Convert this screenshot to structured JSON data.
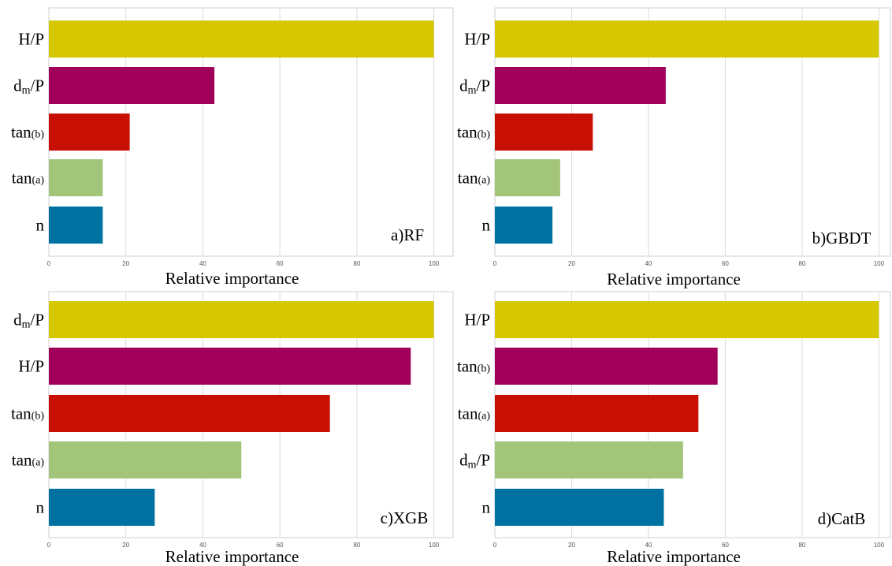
{
  "figure": {
    "colors": [
      "#d6c800",
      "#a1005a",
      "#c80f04",
      "#a2c57a",
      "#0072a2"
    ]
  },
  "chart_data": [
    {
      "type": "bar",
      "orientation": "horizontal",
      "panel_label": "a)RF",
      "xlabel": "Relative importance",
      "xlim": [
        0,
        105
      ],
      "xticks": [
        "0",
        "20",
        "40",
        "60",
        "80",
        "100"
      ],
      "grid": true,
      "categories": [
        {
          "main": "H/P",
          "sub": ""
        },
        {
          "main": "dm/P",
          "sub": ""
        },
        {
          "main": "tan",
          "sub": "(b)"
        },
        {
          "main": "tan",
          "sub": "(a)"
        },
        {
          "main": "n",
          "sub": ""
        }
      ],
      "values": [
        100,
        43,
        21,
        14,
        14
      ]
    },
    {
      "type": "bar",
      "orientation": "horizontal",
      "panel_label": "b)GBDT",
      "xlabel": "Relative importance",
      "xlim": [
        0,
        103
      ],
      "xticks": [
        "0",
        "20",
        "40",
        "60",
        "80",
        "100"
      ],
      "grid": true,
      "categories": [
        {
          "main": "H/P",
          "sub": ""
        },
        {
          "main": "dm/P",
          "sub": ""
        },
        {
          "main": "tan",
          "sub": "(b)"
        },
        {
          "main": "tan",
          "sub": "(a)"
        },
        {
          "main": "n",
          "sub": ""
        }
      ],
      "values": [
        100,
        44.5,
        25.5,
        17,
        15
      ]
    },
    {
      "type": "bar",
      "orientation": "horizontal",
      "panel_label": "c)XGB",
      "xlabel": "Relative importance",
      "xlim": [
        0,
        105
      ],
      "xticks": [
        "0",
        "20",
        "40",
        "60",
        "80",
        "100"
      ],
      "grid": true,
      "categories": [
        {
          "main": "dm/P",
          "sub": ""
        },
        {
          "main": "H/P",
          "sub": ""
        },
        {
          "main": "tan",
          "sub": "(b)"
        },
        {
          "main": "tan",
          "sub": "(a)"
        },
        {
          "main": "n",
          "sub": ""
        }
      ],
      "values": [
        100,
        94,
        73,
        50,
        27.5
      ]
    },
    {
      "type": "bar",
      "orientation": "horizontal",
      "panel_label": "d)CatB",
      "xlabel": "Relative importance",
      "xlim": [
        0,
        103
      ],
      "xticks": [
        "0",
        "20",
        "40",
        "60",
        "80",
        "100"
      ],
      "grid": true,
      "categories": [
        {
          "main": "H/P",
          "sub": ""
        },
        {
          "main": "tan",
          "sub": "(b)"
        },
        {
          "main": "tan",
          "sub": "(a)"
        },
        {
          "main": "dm/P",
          "sub": ""
        },
        {
          "main": "n",
          "sub": ""
        }
      ],
      "values": [
        100,
        58,
        53,
        49,
        44
      ]
    }
  ]
}
